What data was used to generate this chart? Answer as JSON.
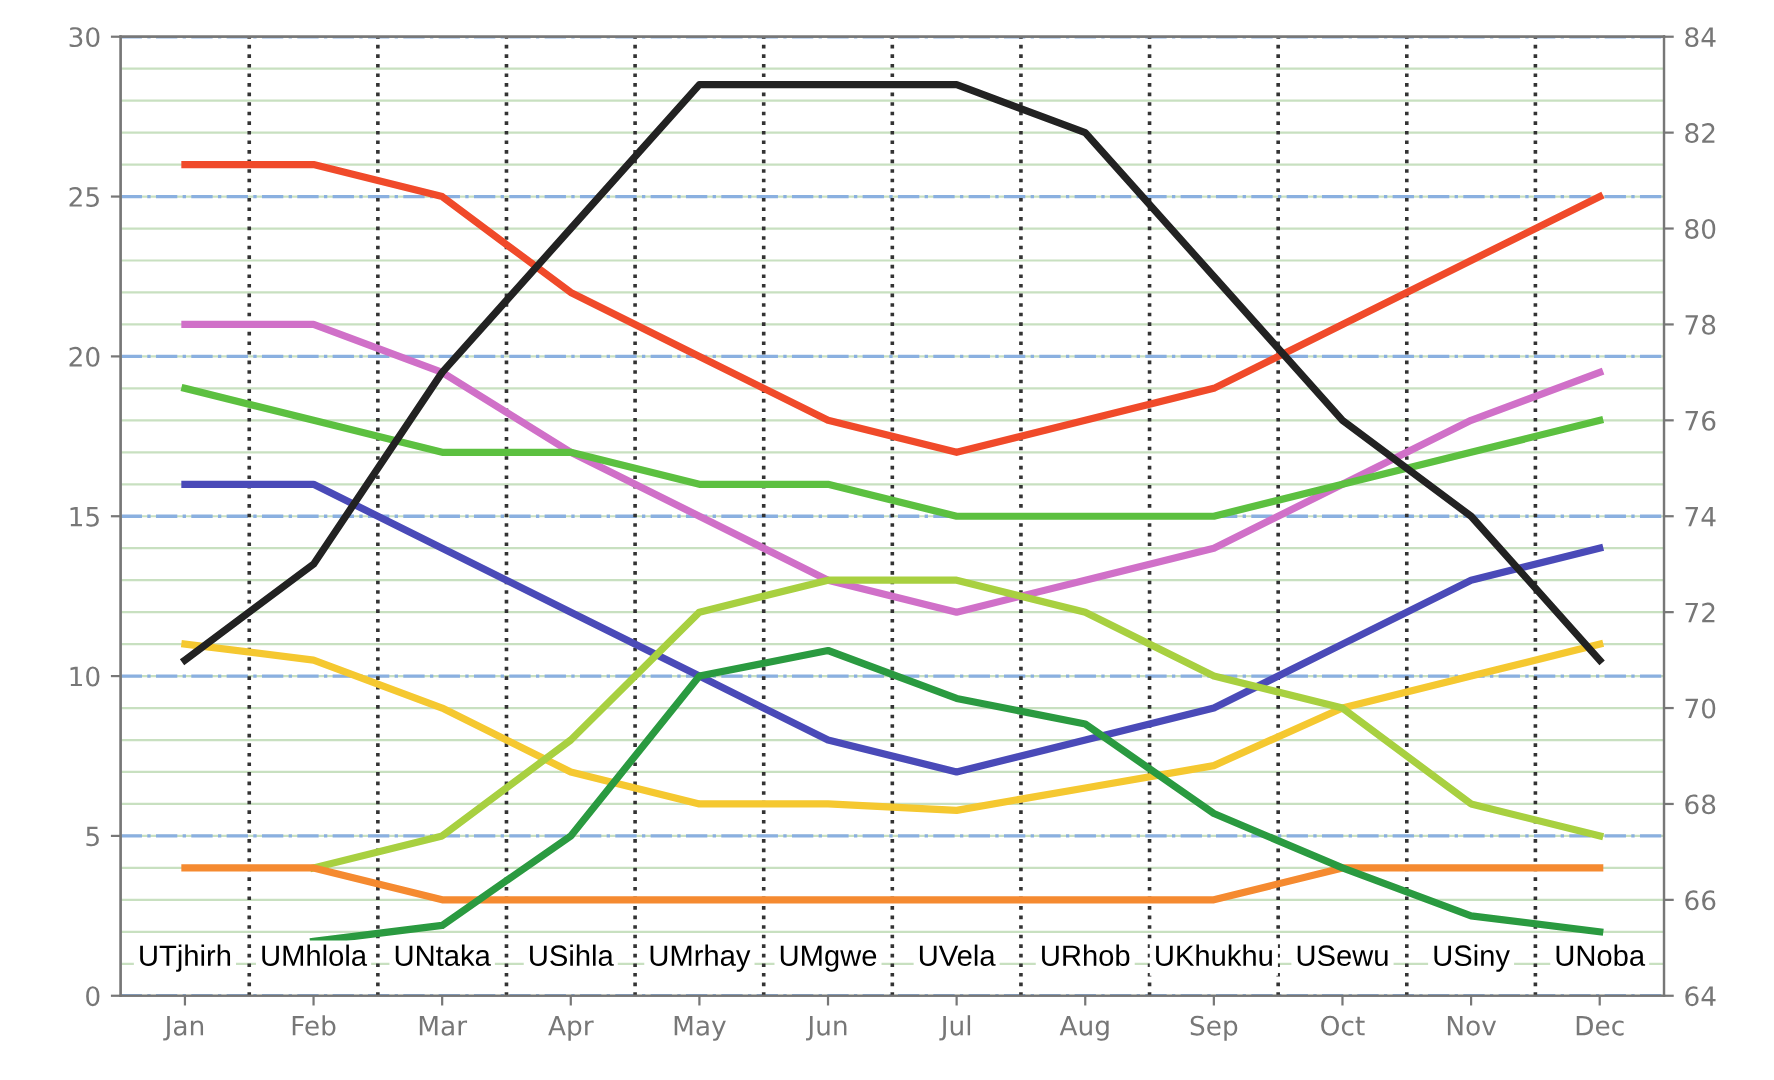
{
  "chart_data": {
    "type": "line",
    "categories": [
      "Jan",
      "Feb",
      "Mar",
      "Apr",
      "May",
      "Jun",
      "Jul",
      "Aug",
      "Sep",
      "Oct",
      "Nov",
      "Dec"
    ],
    "series": [
      {
        "color": "#f04a2a",
        "values": [
          26,
          26,
          25,
          22,
          20,
          18,
          17,
          18,
          19,
          21,
          23,
          25
        ]
      },
      {
        "color": "#d070c8",
        "values": [
          21,
          21,
          19.5,
          17,
          15,
          13,
          12,
          13,
          14,
          16,
          18,
          19.5
        ]
      },
      {
        "color": "#5cc040",
        "values": [
          19,
          18,
          17,
          17,
          16,
          16,
          15,
          15,
          15,
          16,
          17,
          18
        ]
      },
      {
        "color": "#4a4ab8",
        "values": [
          16,
          16,
          14,
          12,
          10,
          8,
          7,
          8,
          9,
          11,
          13,
          14
        ]
      },
      {
        "color": "#f5c830",
        "values": [
          11,
          10.5,
          9,
          7,
          6,
          6,
          5.8,
          6.5,
          7.2,
          9,
          10,
          11
        ]
      },
      {
        "color": "#a8d040",
        "values": [
          null,
          4,
          5,
          8,
          12,
          13,
          13,
          12,
          10,
          9,
          6,
          5
        ]
      },
      {
        "color": "#f58a30",
        "values": [
          4,
          4,
          3,
          3,
          3,
          3,
          3,
          3,
          3,
          4,
          4,
          4
        ]
      },
      {
        "color": "#2a9a40",
        "values": [
          null,
          1.7,
          2.2,
          5,
          10,
          10.8,
          9.3,
          8.5,
          5.7,
          4,
          2.5,
          2
        ]
      },
      {
        "color": "#222222",
        "axis": "y2",
        "values": [
          71,
          73,
          77,
          80,
          83,
          83,
          83,
          82,
          79,
          76,
          74,
          71
        ]
      }
    ],
    "ylim": [
      0,
      30
    ],
    "yticks": [
      0,
      5,
      10,
      15,
      20,
      25,
      30
    ],
    "y2lim": [
      64,
      84
    ],
    "y2ticks": [
      64,
      66,
      68,
      70,
      72,
      74,
      76,
      78,
      80,
      82,
      84
    ],
    "grid": true,
    "line_style": "solid",
    "marker": "none",
    "annotations": [
      "UTjhirh",
      "UMhlola",
      "UNtaka",
      "USihla",
      "UMrhay",
      "UMgwe",
      "UVela",
      "URhob",
      "UKhukhu",
      "USewu",
      "USiny",
      "UNoba"
    ]
  }
}
